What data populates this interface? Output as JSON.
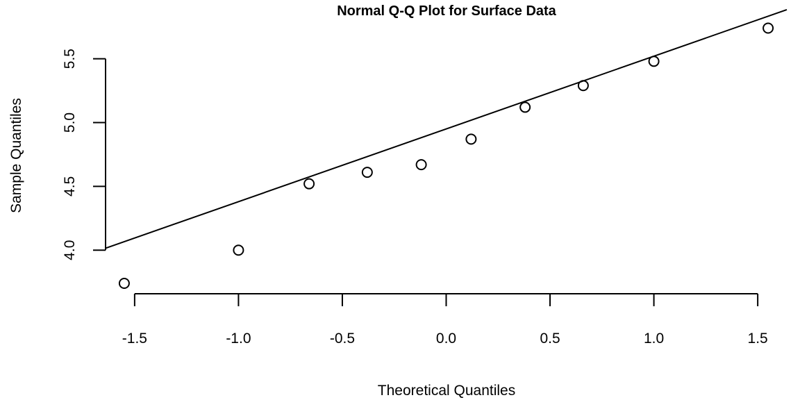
{
  "chart_data": {
    "type": "scatter",
    "title": "Normal Q-Q Plot for Surface Data",
    "xlabel": "Theoretical Quantiles",
    "ylabel": "Sample Quantiles",
    "xlim": [
      -1.64,
      1.64
    ],
    "ylim": [
      3.74,
      5.77
    ],
    "x_ticks": [
      -1.5,
      -1.0,
      -0.5,
      0.0,
      0.5,
      1.0,
      1.5
    ],
    "x_tick_labels": [
      "-1.5",
      "-1.0",
      "-0.5",
      "0.0",
      "0.5",
      "1.0",
      "1.5"
    ],
    "y_ticks": [
      4.0,
      4.5,
      5.0,
      5.5
    ],
    "y_tick_labels": [
      "4.0",
      "4.5",
      "5.0",
      "5.5"
    ],
    "grid": false,
    "legend": "none",
    "point_style": "open-circle",
    "points": [
      {
        "x": -1.55,
        "y": 3.74
      },
      {
        "x": -1.0,
        "y": 4.0
      },
      {
        "x": -0.66,
        "y": 4.52
      },
      {
        "x": -0.38,
        "y": 4.61
      },
      {
        "x": -0.12,
        "y": 4.67
      },
      {
        "x": 0.12,
        "y": 4.87
      },
      {
        "x": 0.38,
        "y": 5.12
      },
      {
        "x": 0.66,
        "y": 5.29
      },
      {
        "x": 1.0,
        "y": 5.48
      },
      {
        "x": 1.55,
        "y": 5.74
      }
    ],
    "reference_line": {
      "intercept": 4.95,
      "slope": 0.57
    },
    "colors": {
      "ink": "#000000",
      "background": "#ffffff"
    }
  }
}
